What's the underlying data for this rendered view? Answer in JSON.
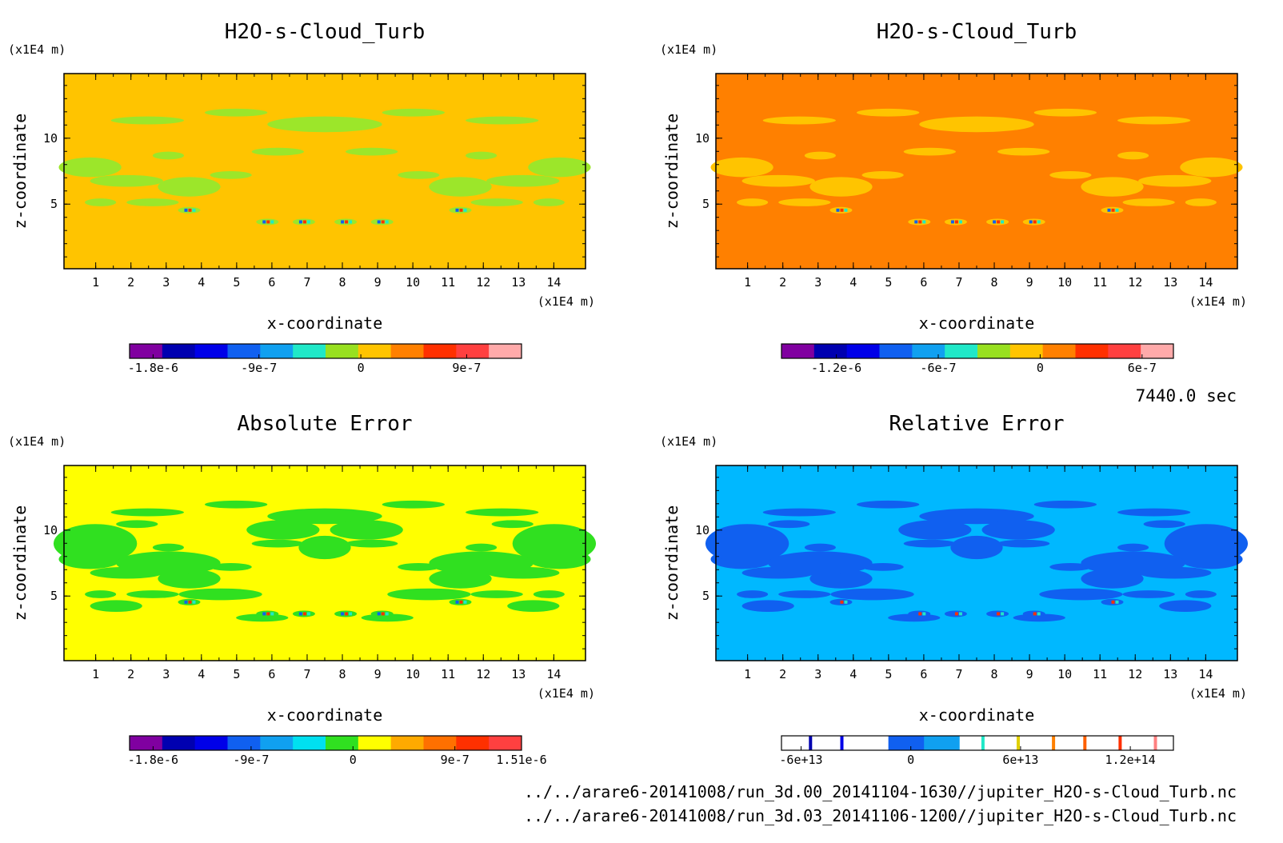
{
  "chart_data": [
    {
      "type": "heatmap",
      "title": "H2O-s-Cloud_Turb",
      "xlabel": "x-coordinate",
      "ylabel": "z-coordinate",
      "x_unit": "(x1E4 m)",
      "y_unit": "(x1E4 m)",
      "xlim": [
        0.1,
        14.9
      ],
      "ylim": [
        0.1,
        14.9
      ],
      "x_ticks": [
        "1",
        "2",
        "3",
        "4",
        "5",
        "6",
        "7",
        "8",
        "9",
        "10",
        "11",
        "12",
        "13",
        "14"
      ],
      "y_ticks": [
        "5",
        "10"
      ],
      "background_color": "#ffc400",
      "blob_color": "#9ce62a",
      "colorbar": {
        "colors": [
          "#8000a0",
          "#0000b0",
          "#0000e8",
          "#1060f0",
          "#10a0f0",
          "#20e8c8",
          "#98e020",
          "#ffc400",
          "#ff8000",
          "#ff3000",
          "#ff4040",
          "#ffaaaa"
        ],
        "labels": [
          "-1.8e-6",
          "-9e-7",
          "0",
          "9e-7"
        ]
      }
    },
    {
      "type": "heatmap",
      "title": "H2O-s-Cloud_Turb",
      "xlabel": "x-coordinate",
      "ylabel": "z-coordinate",
      "x_unit": "(x1E4 m)",
      "y_unit": "(x1E4 m)",
      "xlim": [
        0.1,
        14.9
      ],
      "ylim": [
        0.1,
        14.9
      ],
      "x_ticks": [
        "1",
        "2",
        "3",
        "4",
        "5",
        "6",
        "7",
        "8",
        "9",
        "10",
        "11",
        "12",
        "13",
        "14"
      ],
      "y_ticks": [
        "5",
        "10"
      ],
      "background_color": "#ff8000",
      "blob_color": "#ffc400",
      "colorbar": {
        "colors": [
          "#8000a0",
          "#0000b0",
          "#0000e8",
          "#1060f0",
          "#10a0f0",
          "#20e8c8",
          "#98e020",
          "#ffc400",
          "#ff8000",
          "#ff3000",
          "#ff4040",
          "#ffaaaa"
        ],
        "labels": [
          "-1.2e-6",
          "-6e-7",
          "0",
          "6e-7"
        ]
      }
    },
    {
      "type": "heatmap",
      "title": "Absolute Error",
      "xlabel": "x-coordinate",
      "ylabel": "z-coordinate",
      "x_unit": "(x1E4 m)",
      "y_unit": "(x1E4 m)",
      "xlim": [
        0.1,
        14.9
      ],
      "ylim": [
        0.1,
        14.9
      ],
      "x_ticks": [
        "1",
        "2",
        "3",
        "4",
        "5",
        "6",
        "7",
        "8",
        "9",
        "10",
        "11",
        "12",
        "13",
        "14"
      ],
      "y_ticks": [
        "5",
        "10"
      ],
      "background_color": "#ffff00",
      "blob_color": "#30e020",
      "colorbar": {
        "colors": [
          "#8000a0",
          "#0000b0",
          "#0000e8",
          "#1060f0",
          "#10a0f0",
          "#00e0f0",
          "#30e020",
          "#ffff00",
          "#ffaa00",
          "#ff7000",
          "#ff3000",
          "#ff4040"
        ],
        "labels": [
          "-1.8e-6",
          "-9e-7",
          "0",
          "9e-7",
          "1.51e-6"
        ]
      }
    },
    {
      "type": "heatmap",
      "title": "Relative Error",
      "xlabel": "x-coordinate",
      "ylabel": "z-coordinate",
      "x_unit": "(x1E4 m)",
      "y_unit": "(x1E4 m)",
      "xlim": [
        0.1,
        14.9
      ],
      "ylim": [
        0.1,
        14.9
      ],
      "x_ticks": [
        "1",
        "2",
        "3",
        "4",
        "5",
        "6",
        "7",
        "8",
        "9",
        "10",
        "11",
        "12",
        "13",
        "14"
      ],
      "y_ticks": [
        "5",
        "10"
      ],
      "background_color": "#00b8ff",
      "blob_color": "#1060f0",
      "colorbar": {
        "colors": [
          "#ffffff",
          "#ffffff",
          "#ffffff",
          "#1060f0",
          "#10a0f0",
          "#ffffff",
          "#ffffff",
          "#ffffff",
          "#ffffff",
          "#ffffff",
          "#ffffff"
        ],
        "labels": [
          "-6e+13",
          "0",
          "6e+13",
          "1.2e+14"
        ]
      }
    }
  ],
  "time_label": "7440.0 sec",
  "file_paths": [
    "../../arare6-20141008/run_3d.00_20141104-1630//jupiter_H2O-s-Cloud_Turb.nc",
    "../../arare6-20141008/run_3d.03_20141106-1200//jupiter_H2O-s-Cloud_Turb.nc"
  ]
}
